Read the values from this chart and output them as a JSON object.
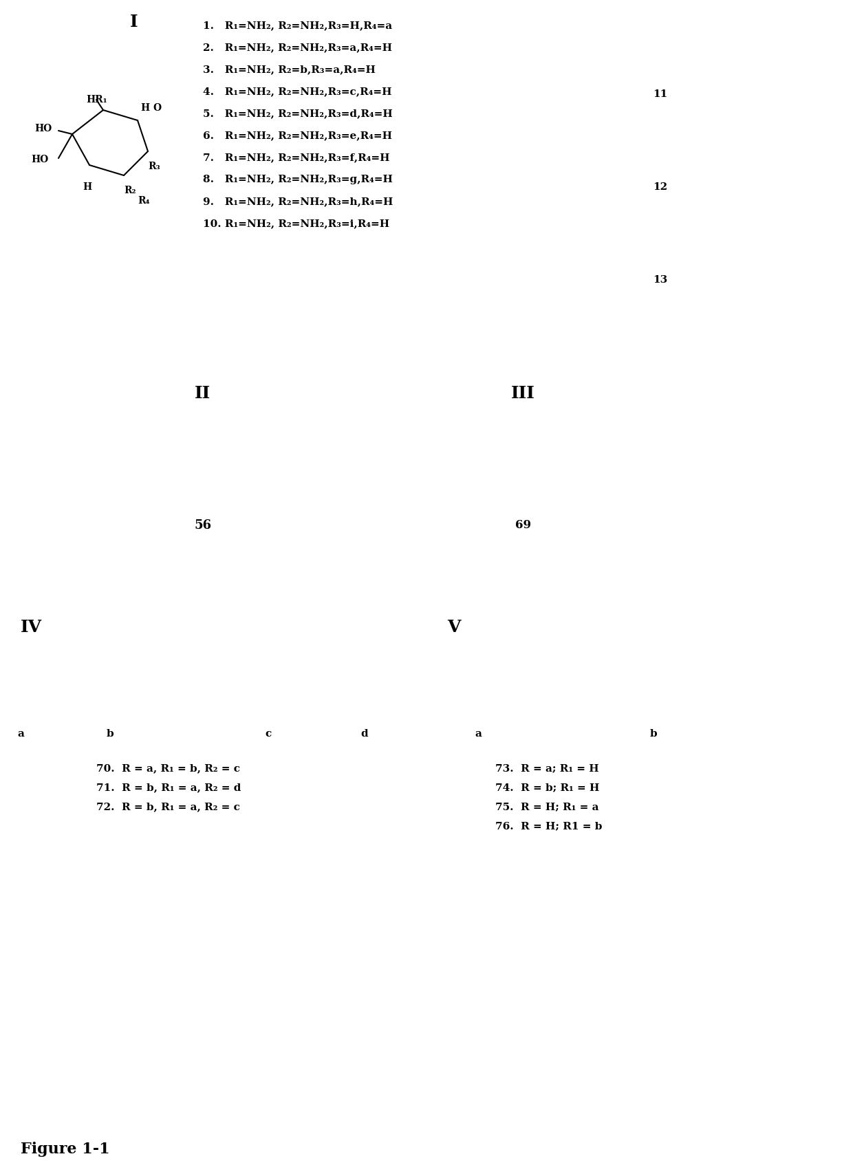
{
  "figure_label": "Figure 1-1",
  "background_color": "#ffffff",
  "text_color": "#000000",
  "figsize": [
    12.4,
    16.91
  ],
  "dpi": 100,
  "section_I_label": "I",
  "section_II_label": "II",
  "section_III_label": "III",
  "section_IV_label": "IV",
  "section_V_label": "V",
  "compound_list": [
    "1.   R₁=NH₂, R₂=NH₂,R₃=H,R₄=a",
    "2.   R₁=NH₂, R₂=NH₂,R₃=a,R₄=H",
    "3.   R₁=NH₂, R₂=b,R₃=a,R₄=H",
    "4.   R₁=NH₂, R₂=NH₂,R₃=c,R₄=H",
    "5.   R₁=NH₂, R₂=NH₂,R₃=d,R₄=H",
    "6.   R₁=NH₂, R₂=NH₂,R₃=e,R₄=H",
    "7.   R₁=NH₂, R₂=NH₂,R₃=f,R₄=H",
    "8.   R₁=NH₂, R₂=NH₂,R₃=g,R₄=H",
    "9.   R₁=NH₂, R₂=NH₂,R₃=h,R₄=H",
    "10. R₁=NH₂, R₂=NH₂,R₃=i,R₄=H"
  ],
  "section_IV_list": [
    "70.  R = a, R₁ = b, R₂ = c",
    "71.  R = b, R₁ = a, R₂ = d",
    "72.  R = b, R₁ = a, R₂ = c"
  ],
  "section_V_list": [
    "73.  R = a; R₁ = H",
    "74.  R = b; R₁ = H",
    "75.  R = H; R₁ = a",
    "76.  R = H; R1 = b"
  ]
}
